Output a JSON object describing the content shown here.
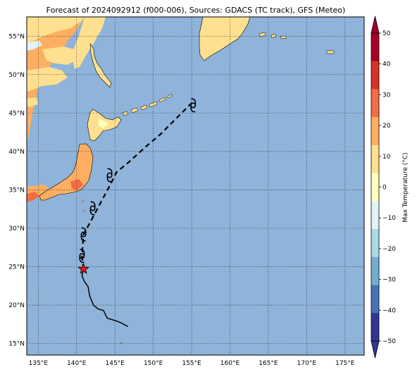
{
  "title": "Forecast of 2024092912 (f000-006), Sources: GDACS (TC track), GFS (Meteo)",
  "map": {
    "lon_range": [
      133.5,
      177.5
    ],
    "lat_range": [
      13.5,
      57.5
    ],
    "lon_ticks": [
      135,
      140,
      145,
      150,
      155,
      160,
      165,
      170,
      175
    ],
    "lon_tick_labels": [
      "135°E",
      "140°E",
      "145°E",
      "150°E",
      "155°E",
      "160°E",
      "165°E",
      "170°E",
      "175°E"
    ],
    "lat_ticks": [
      15,
      20,
      25,
      30,
      35,
      40,
      45,
      50,
      55
    ],
    "lat_tick_labels": [
      "15°N",
      "20°N",
      "25°N",
      "30°N",
      "35°N",
      "40°N",
      "45°N",
      "50°N",
      "55°N"
    ],
    "ocean_color": "#8fb3d9",
    "gridlines": "dotted"
  },
  "colorbar": {
    "label": "Max Temperature (°C)",
    "ticks": [
      50,
      40,
      30,
      20,
      10,
      0,
      -10,
      -20,
      -30,
      -40,
      -50
    ],
    "tick_labels": [
      "50",
      "40",
      "30",
      "20",
      "10",
      "0",
      "−10",
      "−20",
      "−30",
      "−40",
      "−50"
    ],
    "colors_top_to_bottom": [
      "#a50026",
      "#d73027",
      "#f46d43",
      "#fdae61",
      "#fee090",
      "#ffffbf",
      "#e0f3f8",
      "#abd9e9",
      "#74add1",
      "#4575b4",
      "#313695"
    ]
  },
  "track": {
    "past": [
      [
        146.7,
        17.2
      ],
      [
        145.8,
        17.7
      ],
      [
        145.0,
        18.0
      ],
      [
        144.0,
        18.3
      ],
      [
        143.5,
        19.3
      ],
      [
        142.8,
        19.5
      ],
      [
        142.2,
        20.0
      ],
      [
        141.7,
        21.2
      ],
      [
        141.5,
        22.4
      ],
      [
        141.0,
        23.1
      ],
      [
        140.7,
        23.8
      ],
      [
        140.9,
        24.7
      ]
    ],
    "forecast": [
      [
        140.9,
        24.7
      ],
      [
        140.7,
        26.4
      ],
      [
        140.9,
        29.2
      ],
      [
        141.9,
        31.0
      ],
      [
        142.9,
        32.9
      ],
      [
        144.3,
        35.5
      ],
      [
        145.2,
        37.3
      ],
      [
        146.8,
        38.6
      ],
      [
        149.0,
        40.6
      ],
      [
        150.9,
        42.2
      ],
      [
        153.0,
        44.3
      ],
      [
        155.2,
        46.5
      ]
    ],
    "current_position": [
      140.9,
      24.7
    ],
    "current_marker": "star",
    "forecast_symbol": "tropical-cyclone-icon",
    "forecast_symbol_positions": [
      [
        140.7,
        26.4
      ],
      [
        140.9,
        29.2
      ],
      [
        142.1,
        32.6
      ],
      [
        144.3,
        36.9
      ],
      [
        155.2,
        46.0
      ]
    ]
  }
}
